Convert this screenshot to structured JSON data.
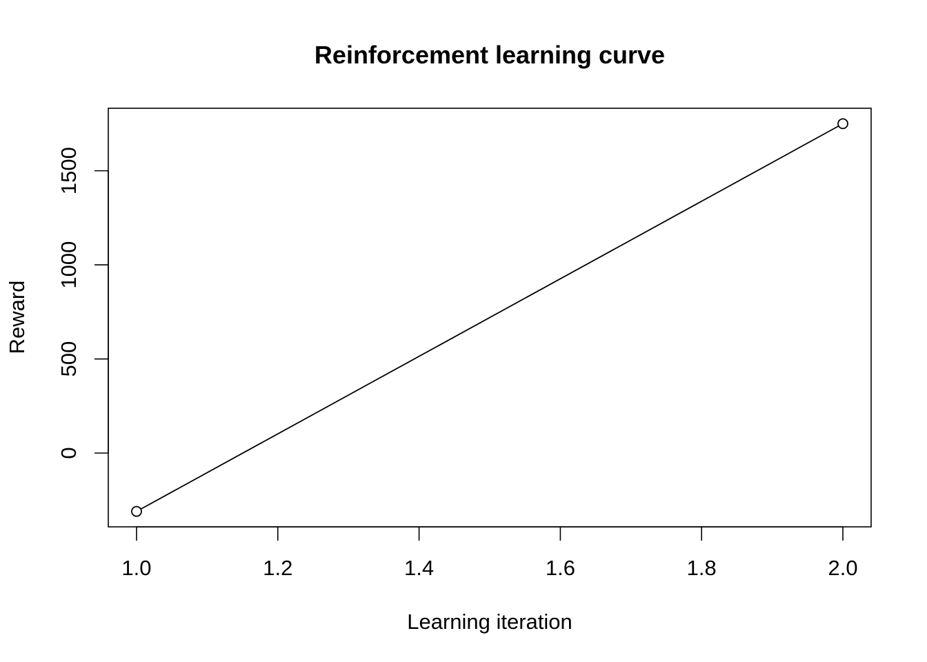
{
  "chart_data": {
    "type": "line",
    "title": "Reinforcement learning curve",
    "xlabel": "Learning iteration",
    "ylabel": "Reward",
    "x": [
      1.0,
      2.0
    ],
    "series": [
      {
        "name": "Reward",
        "values": [
          -310,
          1750
        ]
      }
    ],
    "xlim": [
      0.96,
      2.04
    ],
    "ylim": [
      -392,
      1832
    ],
    "x_ticks": [
      1.0,
      1.2,
      1.4,
      1.6,
      1.8,
      2.0
    ],
    "x_tick_labels": [
      "1.0",
      "1.2",
      "1.4",
      "1.6",
      "1.8",
      "2.0"
    ],
    "y_ticks": [
      0,
      500,
      1000,
      1500
    ],
    "y_tick_labels": [
      "0",
      "500",
      "1000",
      "1500"
    ],
    "marker": "open-circle",
    "grid": false,
    "legend": "none",
    "colors": {
      "line": "#000000",
      "background": "#ffffff"
    }
  }
}
